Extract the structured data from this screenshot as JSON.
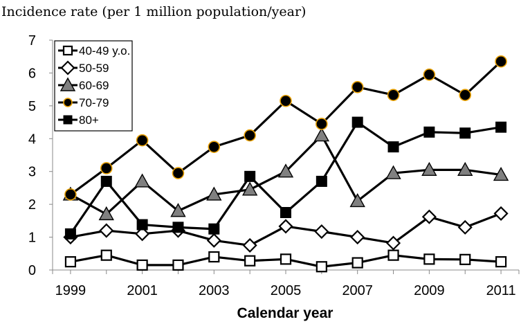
{
  "chart_data": {
    "type": "line",
    "ylabel": "Incidence rate (per 1 million population/year)",
    "xlabel": "Calendar year",
    "ylim": [
      0,
      7
    ],
    "yticks": [
      "0",
      "1",
      "2",
      "3",
      "4",
      "5",
      "6",
      "7"
    ],
    "xticks": [
      "1999",
      "2001",
      "2003",
      "2005",
      "2007",
      "2009",
      "2011"
    ],
    "x": [
      1999,
      2000,
      2001,
      2002,
      2003,
      2004,
      2005,
      2006,
      2007,
      2008,
      2009,
      2010,
      2011
    ],
    "grid": false,
    "legend_position": "top-left",
    "series": [
      {
        "name": "40-49 y.o.",
        "marker": "square-open",
        "color": "#000000",
        "values": [
          0.25,
          0.45,
          0.15,
          0.15,
          0.4,
          0.28,
          0.33,
          0.1,
          0.22,
          0.45,
          0.33,
          0.32,
          0.25
        ]
      },
      {
        "name": "50-59",
        "marker": "diamond-open",
        "color": "#000000",
        "values": [
          1.0,
          1.2,
          1.1,
          1.2,
          0.9,
          0.75,
          1.33,
          1.17,
          1.0,
          0.82,
          1.62,
          1.3,
          1.72
        ]
      },
      {
        "name": "60-69",
        "marker": "triangle-gray",
        "color": "#808080",
        "values": [
          2.3,
          1.7,
          2.7,
          1.8,
          2.3,
          2.45,
          3.0,
          4.1,
          2.1,
          2.95,
          3.05,
          3.05,
          2.9
        ]
      },
      {
        "name": "70-79",
        "marker": "circle-black-orange",
        "color": "#e8a000",
        "values": [
          2.3,
          3.1,
          3.95,
          2.95,
          3.75,
          4.1,
          5.15,
          4.45,
          5.57,
          5.33,
          5.95,
          5.33,
          6.35
        ]
      },
      {
        "name": "80+",
        "marker": "square-filled",
        "color": "#000000",
        "values": [
          1.1,
          2.7,
          1.38,
          1.3,
          1.25,
          2.85,
          1.75,
          2.7,
          4.5,
          3.75,
          4.2,
          4.17,
          4.35
        ]
      }
    ]
  }
}
